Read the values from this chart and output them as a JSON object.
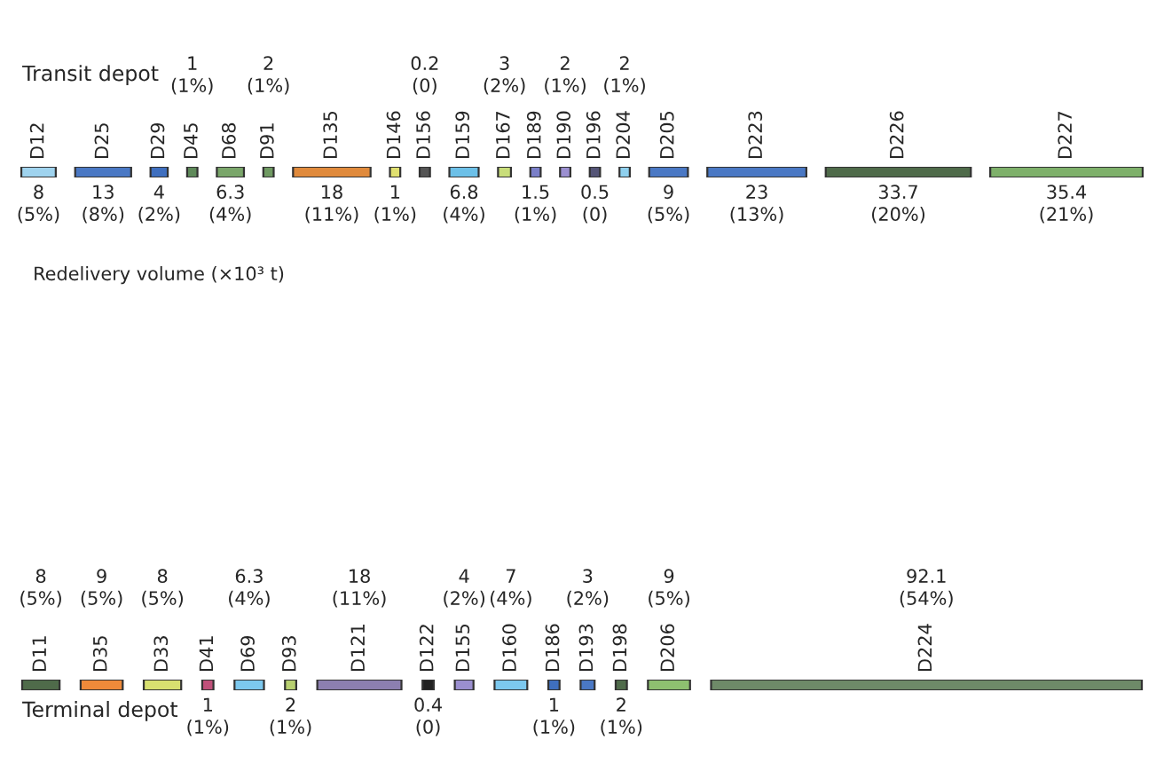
{
  "chart_data": [
    {
      "type": "other",
      "title": "Transit depot",
      "categories": [
        "D12",
        "D25",
        "D29",
        "D45",
        "D68",
        "D91",
        "D135",
        "D146",
        "D156",
        "D159",
        "D167",
        "D189",
        "D190",
        "D196",
        "D204",
        "D205",
        "D223",
        "D226",
        "D227"
      ],
      "values": [
        8,
        13,
        4,
        1,
        6.3,
        2,
        18,
        1,
        0.2,
        6.8,
        3,
        1.5,
        2,
        0.5,
        2,
        9,
        23,
        33.7,
        35.4
      ],
      "value_labels": [
        "8\n(5%)",
        "13\n(8%)",
        "4\n(2%)",
        "1\n(1%)",
        "6.3\n(4%)",
        "2\n(1%)",
        "18\n(11%)",
        "1\n(1%)",
        "0.2\n(0)",
        "6.8\n(4%)",
        "3\n(2%)",
        "1.5\n(1%)",
        "2\n(1%)",
        "0.5\n(0)",
        "2\n(1%)",
        "9\n(5%)",
        "23\n(13%)",
        "33.7\n(20%)",
        "35.4\n(21%)"
      ],
      "colors": [
        "#9fd3ee",
        "#4a78c4",
        "#3f6fbf",
        "#5f8a5a",
        "#7aa66a",
        "#6f9a62",
        "#e08a3c",
        "#e0e070",
        "#555555",
        "#6cc0e8",
        "#c8dd7a",
        "#7a7fc8",
        "#9b8fd0",
        "#555577",
        "#8fd0ee",
        "#4a78c4",
        "#4a78c4",
        "#4f6b4a",
        "#7eb06a"
      ],
      "annotations": [
        "Redelivery volume (×10³ t)"
      ]
    },
    {
      "type": "other",
      "title": "Terminal depot",
      "categories": [
        "D11",
        "D35",
        "D33",
        "D41",
        "D69",
        "D93",
        "D121",
        "D122",
        "D155",
        "D160",
        "D186",
        "D193",
        "D198",
        "D206",
        "D224"
      ],
      "values": [
        8,
        9,
        8,
        1,
        6.3,
        2,
        18,
        0.4,
        4,
        7,
        1,
        3,
        2,
        9,
        92.1
      ],
      "value_labels": [
        "8\n(5%)",
        "9\n(5%)",
        "8\n(5%)",
        "1\n(1%)",
        "6.3\n(4%)",
        "2\n(1%)",
        "18\n(11%)",
        "0.4\n(0)",
        "4\n(2%)",
        "7\n(4%)",
        "1\n(1%)",
        "3\n(2%)",
        "2\n(1%)",
        "9\n(5%)",
        "92.1\n(54%)"
      ],
      "colors": [
        "#4f6b4a",
        "#ef8a3a",
        "#d8e070",
        "#c0507a",
        "#7cc8ee",
        "#b8d070",
        "#8c7fb0",
        "#222222",
        "#9b8fd0",
        "#7cc8ee",
        "#3f6fbf",
        "#4a78c4",
        "#4f6b4a",
        "#8ec070",
        "#6e8a68"
      ]
    }
  ]
}
